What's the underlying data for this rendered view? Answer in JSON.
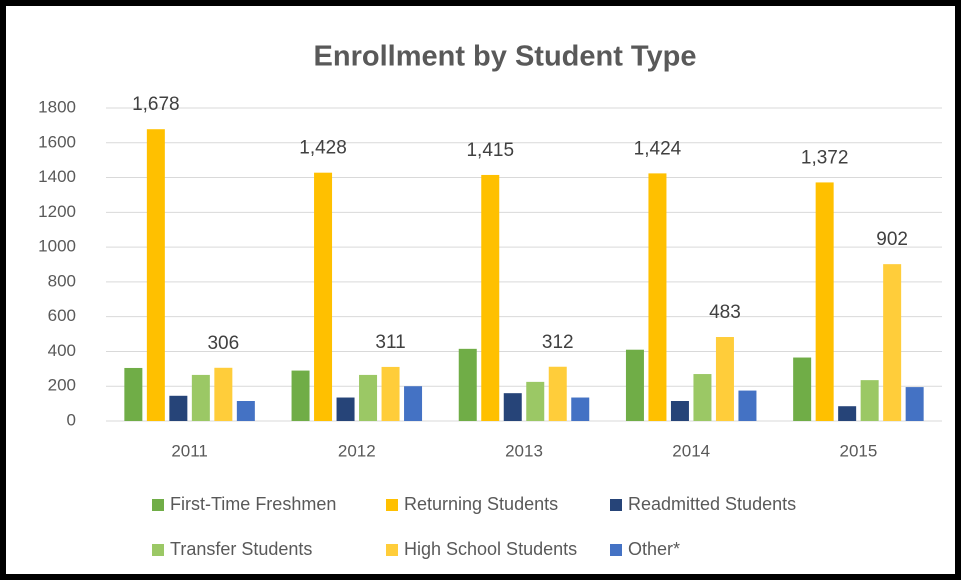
{
  "chart_data": {
    "type": "bar",
    "title": "Enrollment by Student Type",
    "categories": [
      "2011",
      "2012",
      "2013",
      "2014",
      "2015"
    ],
    "series": [
      {
        "name": "First-Time Freshmen",
        "color": "#70ad47",
        "values": [
          305,
          290,
          415,
          410,
          365
        ]
      },
      {
        "name": "Returning Students",
        "color": "#ffc000",
        "values": [
          1678,
          1428,
          1415,
          1424,
          1372
        ],
        "value_labels": [
          "1,678",
          "1,428",
          "1,415",
          "1,424",
          "1,372"
        ]
      },
      {
        "name": "Readmitted Students",
        "color": "#264478",
        "values": [
          145,
          135,
          160,
          115,
          85
        ]
      },
      {
        "name": "Transfer Students",
        "color": "#9bc865",
        "values": [
          265,
          265,
          225,
          270,
          235
        ]
      },
      {
        "name": "High School Students",
        "color": "#ffcd3a",
        "values": [
          306,
          311,
          312,
          483,
          902
        ],
        "value_labels": [
          "306",
          "311",
          "312",
          "483",
          "902"
        ]
      },
      {
        "name": "Other*",
        "color": "#4472c4",
        "values": [
          115,
          200,
          135,
          175,
          195
        ]
      }
    ],
    "ylim": [
      0,
      1800
    ],
    "yticks": [
      0,
      200,
      400,
      600,
      800,
      1000,
      1200,
      1400,
      1600,
      1800
    ],
    "grid": true,
    "legend": "bottom"
  }
}
